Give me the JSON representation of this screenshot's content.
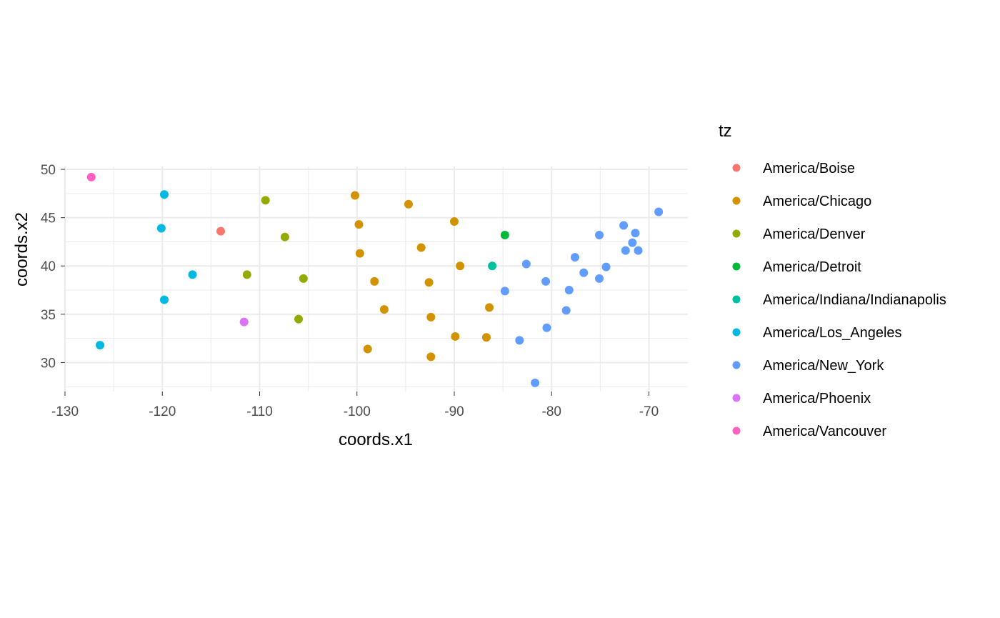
{
  "chart_data": {
    "type": "scatter",
    "xlabel": "coords.x1",
    "ylabel": "coords.x2",
    "xlim": [
      -130,
      -66
    ],
    "ylim": [
      27,
      50.3
    ],
    "x_ticks": [
      -130,
      -120,
      -110,
      -100,
      -90,
      -80,
      -70
    ],
    "y_ticks": [
      30,
      35,
      40,
      45,
      50
    ],
    "x_tick_labels": [
      "-130",
      "-120",
      "-110",
      "-100",
      "-90",
      "-80",
      "-70"
    ],
    "y_tick_labels": [
      "30",
      "35",
      "40",
      "45",
      "50"
    ],
    "grid": true,
    "legend": {
      "title": "tz",
      "placement": "right",
      "entries": [
        {
          "name": "America/Boise",
          "color": "#F8766D"
        },
        {
          "name": "America/Chicago",
          "color": "#D39200"
        },
        {
          "name": "America/Denver",
          "color": "#93AA00"
        },
        {
          "name": "America/Detroit",
          "color": "#00BA38"
        },
        {
          "name": "America/Indiana/Indianapolis",
          "color": "#00C19F"
        },
        {
          "name": "America/Los_Angeles",
          "color": "#00B9E3"
        },
        {
          "name": "America/New_York",
          "color": "#619CFF"
        },
        {
          "name": "America/Phoenix",
          "color": "#DB72FB"
        },
        {
          "name": "America/Vancouver",
          "color": "#FF61C3"
        }
      ]
    },
    "series": [
      {
        "name": "America/Boise",
        "points": [
          [
            -114.0,
            43.6
          ]
        ]
      },
      {
        "name": "America/Chicago",
        "points": [
          [
            -100.2,
            47.3
          ],
          [
            -94.7,
            46.4
          ],
          [
            -90.0,
            44.6
          ],
          [
            -99.8,
            44.3
          ],
          [
            -93.4,
            41.9
          ],
          [
            -99.7,
            41.3
          ],
          [
            -89.4,
            40.0
          ],
          [
            -98.2,
            38.4
          ],
          [
            -92.6,
            38.3
          ],
          [
            -97.2,
            35.5
          ],
          [
            -86.4,
            35.7
          ],
          [
            -92.4,
            34.7
          ],
          [
            -89.9,
            32.7
          ],
          [
            -86.7,
            32.6
          ],
          [
            -98.9,
            31.4
          ],
          [
            -92.4,
            30.6
          ]
        ]
      },
      {
        "name": "America/Denver",
        "points": [
          [
            -109.4,
            46.8
          ],
          [
            -107.4,
            43.0
          ],
          [
            -111.3,
            39.1
          ],
          [
            -105.5,
            38.7
          ],
          [
            -106.0,
            34.5
          ]
        ]
      },
      {
        "name": "America/Detroit",
        "points": [
          [
            -84.8,
            43.2
          ]
        ]
      },
      {
        "name": "America/Indiana/Indianapolis",
        "points": [
          [
            -86.1,
            40.0
          ]
        ]
      },
      {
        "name": "America/Los_Angeles",
        "points": [
          [
            -119.8,
            47.4
          ],
          [
            -120.1,
            43.9
          ],
          [
            -116.9,
            39.1
          ],
          [
            -119.8,
            36.5
          ],
          [
            -126.4,
            31.8
          ]
        ]
      },
      {
        "name": "America/New_York",
        "points": [
          [
            -69.0,
            45.6
          ],
          [
            -72.6,
            44.2
          ],
          [
            -71.4,
            43.4
          ],
          [
            -75.1,
            43.2
          ],
          [
            -71.7,
            42.4
          ],
          [
            -72.4,
            41.6
          ],
          [
            -71.1,
            41.6
          ],
          [
            -77.6,
            40.9
          ],
          [
            -74.4,
            39.9
          ],
          [
            -82.6,
            40.2
          ],
          [
            -76.7,
            39.3
          ],
          [
            -75.1,
            38.7
          ],
          [
            -80.6,
            38.4
          ],
          [
            -78.2,
            37.5
          ],
          [
            -84.8,
            37.4
          ],
          [
            -78.5,
            35.4
          ],
          [
            -80.5,
            33.6
          ],
          [
            -83.3,
            32.3
          ],
          [
            -81.7,
            27.9
          ]
        ]
      },
      {
        "name": "America/Phoenix",
        "points": [
          [
            -111.6,
            34.2
          ]
        ]
      },
      {
        "name": "America/Vancouver",
        "points": [
          [
            -127.3,
            49.2
          ]
        ]
      }
    ]
  }
}
